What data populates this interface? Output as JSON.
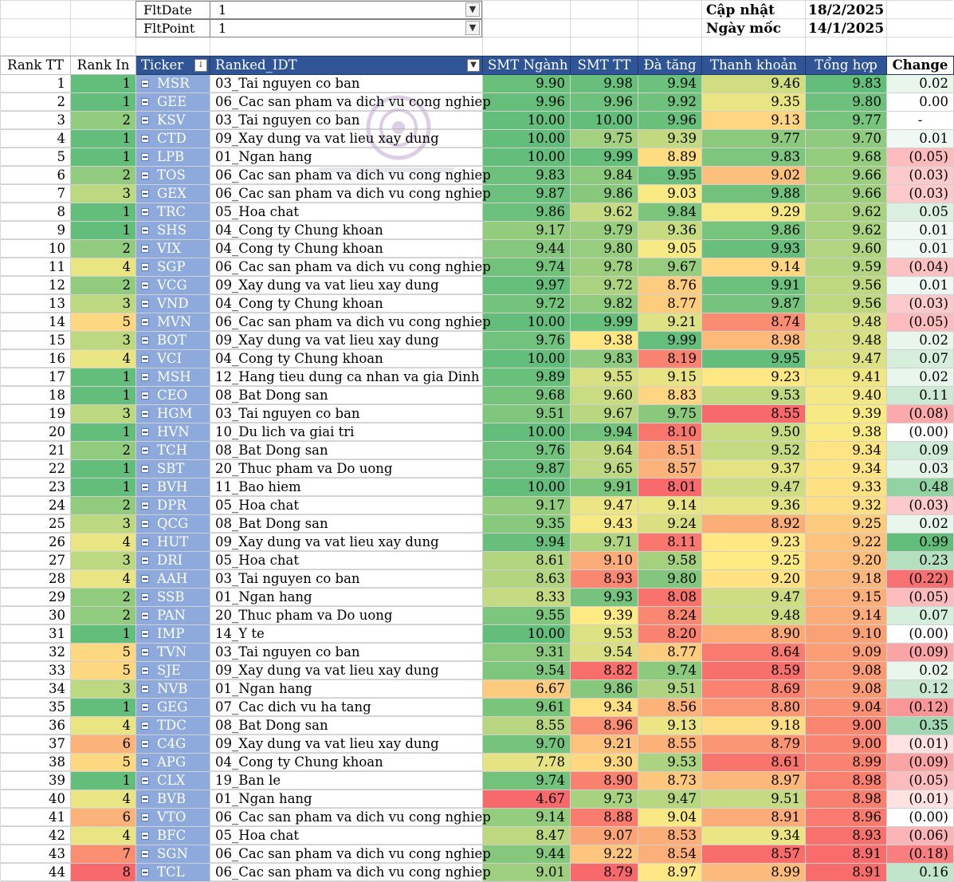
{
  "filters": [
    {
      "label": "FltDate",
      "value": "1"
    },
    {
      "label": "FltPoint",
      "value": "1"
    }
  ],
  "meta": {
    "update_label": "Cập nhật",
    "update_value": "18/2/2025",
    "base_label": "Ngày mốc",
    "base_value": "14/1/2025"
  },
  "headers": {
    "rank_tt": "Rank TT",
    "rank_in": "Rank In",
    "ticker": "Ticker",
    "ranked_idt": "Ranked_IDT",
    "smt_nganh": "SMT Ngành",
    "smt_tt": "SMT TT",
    "da_tang": "Đà tăng",
    "thanh_khoan": "Thanh khoản",
    "tong_hop": "Tổng hợp",
    "change": "Change"
  },
  "rows": [
    [
      "1",
      "1",
      "MSR",
      "03_Tai nguyen co ban",
      "9.90",
      "9.98",
      "9.94",
      "9.46",
      "9.83",
      "0.02"
    ],
    [
      "2",
      "1",
      "GEE",
      "06_Cac san pham va dich vu cong nghiep",
      "9.96",
      "9.96",
      "9.92",
      "9.35",
      "9.80",
      "0.00"
    ],
    [
      "3",
      "2",
      "KSV",
      "03_Tai nguyen co ban",
      "10.00",
      "10.00",
      "9.96",
      "9.13",
      "9.77",
      "-"
    ],
    [
      "4",
      "1",
      "CTD",
      "09_Xay dung va vat lieu xay dung",
      "10.00",
      "9.75",
      "9.39",
      "9.77",
      "9.70",
      "0.01"
    ],
    [
      "5",
      "1",
      "LPB",
      "01_Ngan hang",
      "10.00",
      "9.99",
      "8.89",
      "9.83",
      "9.68",
      "(0.05)"
    ],
    [
      "6",
      "2",
      "TOS",
      "06_Cac san pham va dich vu cong nghiep",
      "9.83",
      "9.84",
      "9.95",
      "9.02",
      "9.66",
      "(0.03)"
    ],
    [
      "7",
      "3",
      "GEX",
      "06_Cac san pham va dich vu cong nghiep",
      "9.87",
      "9.86",
      "9.03",
      "9.88",
      "9.66",
      "(0.03)"
    ],
    [
      "8",
      "1",
      "TRC",
      "05_Hoa chat",
      "9.86",
      "9.62",
      "9.84",
      "9.29",
      "9.62",
      "0.05"
    ],
    [
      "9",
      "1",
      "SHS",
      "04_Cong ty Chung khoan",
      "9.17",
      "9.79",
      "9.36",
      "9.86",
      "9.62",
      "0.01"
    ],
    [
      "10",
      "2",
      "VIX",
      "04_Cong ty Chung khoan",
      "9.44",
      "9.80",
      "9.05",
      "9.93",
      "9.60",
      "0.01"
    ],
    [
      "11",
      "4",
      "SGP",
      "06_Cac san pham va dich vu cong nghiep",
      "9.74",
      "9.78",
      "9.67",
      "9.14",
      "9.59",
      "(0.04)"
    ],
    [
      "12",
      "2",
      "VCG",
      "09_Xay dung va vat lieu xay dung",
      "9.97",
      "9.72",
      "8.76",
      "9.91",
      "9.56",
      "0.01"
    ],
    [
      "13",
      "3",
      "VND",
      "04_Cong ty Chung khoan",
      "9.72",
      "9.82",
      "8.77",
      "9.87",
      "9.56",
      "(0.03)"
    ],
    [
      "14",
      "5",
      "MVN",
      "06_Cac san pham va dich vu cong nghiep",
      "10.00",
      "9.99",
      "9.21",
      "8.74",
      "9.48",
      "(0.05)"
    ],
    [
      "15",
      "3",
      "BOT",
      "09_Xay dung va vat lieu xay dung",
      "9.76",
      "9.38",
      "9.99",
      "8.98",
      "9.48",
      "0.02"
    ],
    [
      "16",
      "4",
      "VCI",
      "04_Cong ty Chung khoan",
      "10.00",
      "9.83",
      "8.19",
      "9.95",
      "9.47",
      "0.07"
    ],
    [
      "17",
      "1",
      "MSH",
      "12_Hang tieu dung ca nhan va gia Dinh",
      "9.89",
      "9.55",
      "9.15",
      "9.23",
      "9.41",
      "0.02"
    ],
    [
      "18",
      "1",
      "CEO",
      "08_Bat Dong san",
      "9.68",
      "9.60",
      "8.83",
      "9.53",
      "9.40",
      "0.11"
    ],
    [
      "19",
      "3",
      "HGM",
      "03_Tai nguyen co ban",
      "9.51",
      "9.67",
      "9.75",
      "8.55",
      "9.39",
      "(0.08)"
    ],
    [
      "20",
      "1",
      "HVN",
      "10_Du lich va giai tri",
      "10.00",
      "9.94",
      "8.10",
      "9.50",
      "9.38",
      "(0.00)"
    ],
    [
      "21",
      "2",
      "TCH",
      "08_Bat Dong san",
      "9.76",
      "9.64",
      "8.51",
      "9.52",
      "9.34",
      "0.09"
    ],
    [
      "22",
      "1",
      "SBT",
      "20_Thuc pham va Do uong",
      "9.87",
      "9.65",
      "8.57",
      "9.37",
      "9.34",
      "0.03"
    ],
    [
      "23",
      "1",
      "BVH",
      "11_Bao hiem",
      "10.00",
      "9.91",
      "8.01",
      "9.47",
      "9.33",
      "0.48"
    ],
    [
      "24",
      "2",
      "DPR",
      "05_Hoa chat",
      "9.17",
      "9.47",
      "9.14",
      "9.36",
      "9.32",
      "(0.03)"
    ],
    [
      "25",
      "3",
      "QCG",
      "08_Bat Dong san",
      "9.35",
      "9.43",
      "9.24",
      "8.92",
      "9.25",
      "0.02"
    ],
    [
      "26",
      "4",
      "HUT",
      "09_Xay dung va vat lieu xay dung",
      "9.94",
      "9.71",
      "8.11",
      "9.23",
      "9.22",
      "0.99"
    ],
    [
      "27",
      "3",
      "DRI",
      "05_Hoa chat",
      "8.61",
      "9.10",
      "9.58",
      "9.25",
      "9.20",
      "0.23"
    ],
    [
      "28",
      "4",
      "AAH",
      "03_Tai nguyen co ban",
      "8.63",
      "8.93",
      "9.80",
      "9.20",
      "9.18",
      "(0.22)"
    ],
    [
      "29",
      "2",
      "SSB",
      "01_Ngan hang",
      "8.33",
      "9.93",
      "8.08",
      "9.47",
      "9.15",
      "(0.05)"
    ],
    [
      "30",
      "2",
      "PAN",
      "20_Thuc pham va Do uong",
      "9.55",
      "9.39",
      "8.24",
      "9.48",
      "9.14",
      "0.07"
    ],
    [
      "31",
      "1",
      "IMP",
      "14_Y te",
      "10.00",
      "9.53",
      "8.20",
      "8.90",
      "9.10",
      "(0.00)"
    ],
    [
      "32",
      "5",
      "TVN",
      "03_Tai nguyen co ban",
      "9.31",
      "9.54",
      "8.77",
      "8.64",
      "9.09",
      "(0.09)"
    ],
    [
      "33",
      "5",
      "SJE",
      "09_Xay dung va vat lieu xay dung",
      "9.54",
      "8.82",
      "9.74",
      "8.59",
      "9.08",
      "0.02"
    ],
    [
      "34",
      "3",
      "NVB",
      "01_Ngan hang",
      "6.67",
      "9.86",
      "9.51",
      "8.69",
      "9.08",
      "0.12"
    ],
    [
      "35",
      "1",
      "GEG",
      "07_Cac dich vu ha tang",
      "9.61",
      "9.34",
      "8.56",
      "8.80",
      "9.04",
      "(0.12)"
    ],
    [
      "36",
      "4",
      "TDC",
      "08_Bat Dong san",
      "8.55",
      "8.96",
      "9.13",
      "9.18",
      "9.00",
      "0.35"
    ],
    [
      "37",
      "6",
      "C4G",
      "09_Xay dung va vat lieu xay dung",
      "9.70",
      "9.21",
      "8.55",
      "8.79",
      "9.00",
      "(0.01)"
    ],
    [
      "38",
      "5",
      "APG",
      "04_Cong ty Chung khoan",
      "7.78",
      "9.30",
      "9.53",
      "8.61",
      "8.99",
      "(0.09)"
    ],
    [
      "39",
      "1",
      "CLX",
      "19_Ban le",
      "9.74",
      "8.90",
      "8.73",
      "8.97",
      "8.98",
      "(0.05)"
    ],
    [
      "40",
      "4",
      "BVB",
      "01_Ngan hang",
      "4.67",
      "9.73",
      "9.47",
      "9.51",
      "8.98",
      "(0.01)"
    ],
    [
      "41",
      "6",
      "VTO",
      "06_Cac san pham va dich vu cong nghiep",
      "9.14",
      "8.88",
      "9.04",
      "8.91",
      "8.96",
      "(0.00)"
    ],
    [
      "42",
      "4",
      "BFC",
      "05_Hoa chat",
      "8.47",
      "9.07",
      "8.53",
      "9.34",
      "8.93",
      "(0.06)"
    ],
    [
      "43",
      "7",
      "SGN",
      "06_Cac san pham va dich vu cong nghiep",
      "9.44",
      "9.22",
      "8.54",
      "8.57",
      "8.91",
      "(0.18)"
    ],
    [
      "44",
      "8",
      "TCL",
      "06_Cac san pham va dich vu cong nghiep",
      "9.01",
      "8.79",
      "8.97",
      "8.99",
      "8.91",
      "0.16"
    ]
  ],
  "colors": {
    "header_bg": "#2f5597",
    "ticker_bg": "#8ea9db",
    "scale_low": "#f8696b",
    "scale_mid": "#ffeb84",
    "scale_high": "#63be7b"
  },
  "icons": {
    "filter_dropdown": "filter-dropdown-icon",
    "sort": "sort-descending-icon",
    "collapse": "collapse-minus-icon"
  }
}
